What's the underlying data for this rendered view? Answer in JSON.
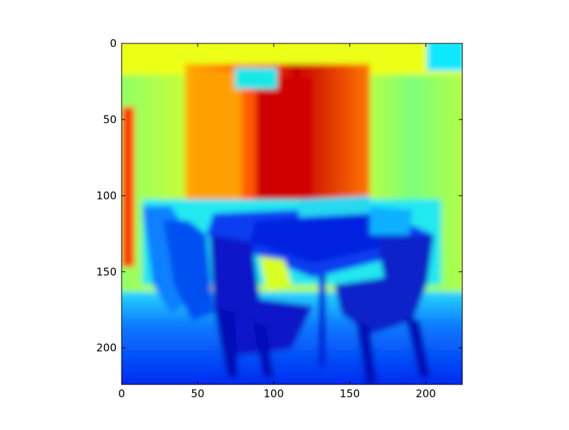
{
  "chart_data": {
    "type": "heatmap",
    "title": "",
    "xlabel": "",
    "ylabel": "",
    "xlim": [
      0,
      224
    ],
    "ylim": [
      224,
      0
    ],
    "x_ticks": [
      0,
      50,
      100,
      150,
      200
    ],
    "y_ticks": [
      0,
      50,
      100,
      150,
      200
    ],
    "x_tick_labels": [
      "0",
      "50",
      "100",
      "150",
      "200"
    ],
    "y_tick_labels": [
      "0",
      "50",
      "100",
      "150",
      "200"
    ],
    "colormap": "jet",
    "grid": false,
    "legend": "none",
    "image_extent": [
      0,
      224,
      224,
      0
    ]
  }
}
